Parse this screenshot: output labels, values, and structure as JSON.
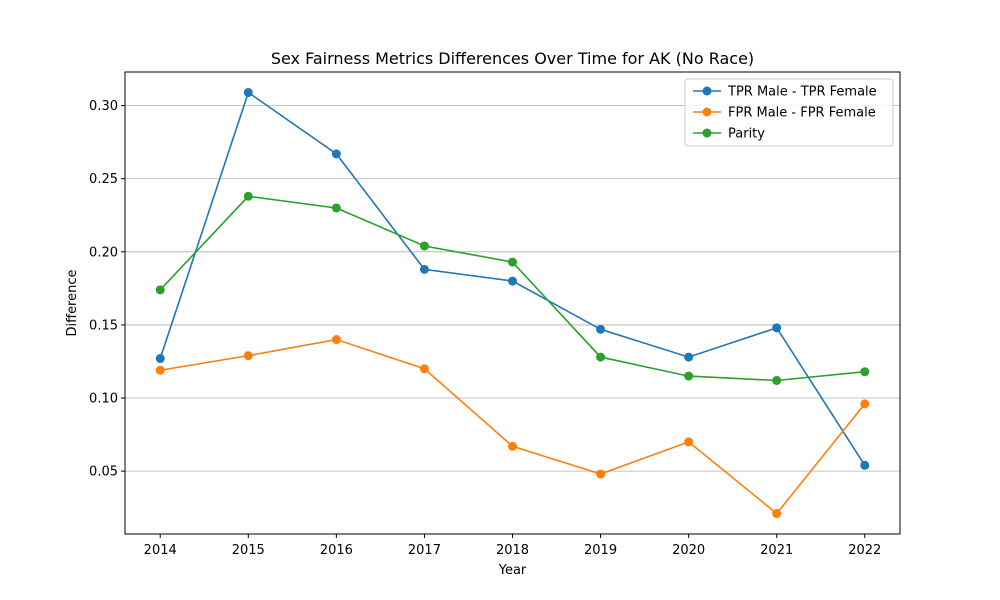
{
  "chart_data": {
    "type": "line",
    "title": "Sex Fairness Metrics Differences Over Time for AK (No Race)",
    "xlabel": "Year",
    "ylabel": "Difference",
    "x": [
      2014,
      2015,
      2016,
      2017,
      2018,
      2019,
      2020,
      2021,
      2022
    ],
    "x_tick_labels": [
      "2014",
      "2015",
      "2016",
      "2017",
      "2018",
      "2019",
      "2020",
      "2021",
      "2022"
    ],
    "y_ticks": [
      0.05,
      0.1,
      0.15,
      0.2,
      0.25,
      0.3
    ],
    "y_tick_labels": [
      "0.05",
      "0.10",
      "0.15",
      "0.20",
      "0.25",
      "0.30"
    ],
    "xlim": [
      2013.6,
      2022.4
    ],
    "ylim": [
      0.007,
      0.323
    ],
    "grid": "horizontal",
    "legend_position": "top-right",
    "series": [
      {
        "name": "TPR Male - TPR Female",
        "color": "#1f77b4",
        "values": [
          0.127,
          0.309,
          0.267,
          0.188,
          0.18,
          0.147,
          0.128,
          0.148,
          0.054
        ]
      },
      {
        "name": "FPR Male - FPR Female",
        "color": "#ff7f0e",
        "values": [
          0.119,
          0.129,
          0.14,
          0.12,
          0.067,
          0.048,
          0.07,
          0.021,
          0.096
        ]
      },
      {
        "name": "Parity",
        "color": "#2ca02c",
        "values": [
          0.174,
          0.238,
          0.23,
          0.204,
          0.193,
          0.128,
          0.115,
          0.112,
          0.118
        ]
      }
    ]
  }
}
